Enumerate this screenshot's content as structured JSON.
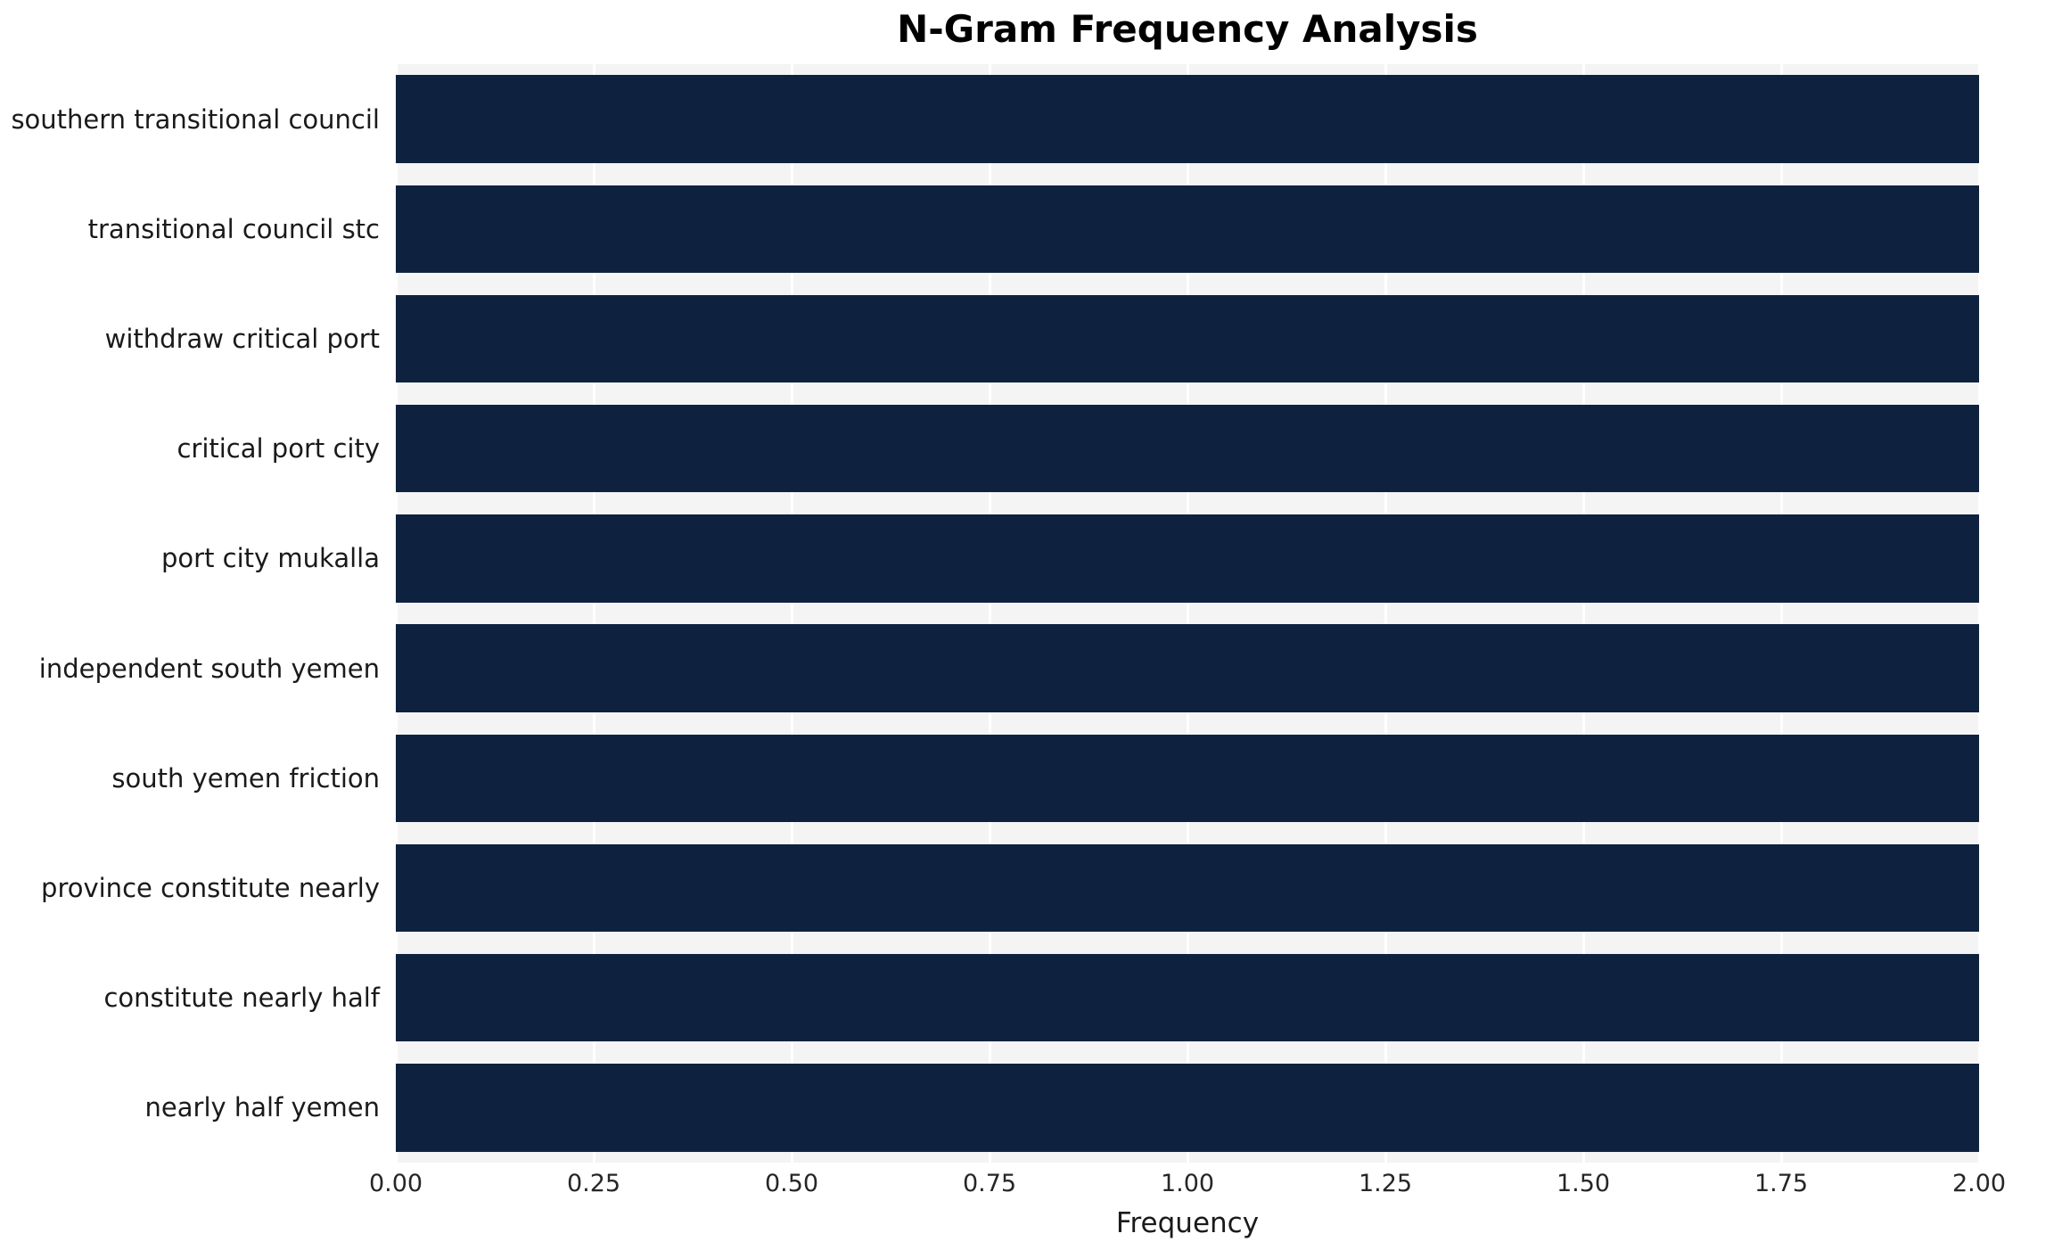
{
  "chart_data": {
    "type": "bar",
    "orientation": "horizontal",
    "title": "N-Gram Frequency Analysis",
    "xlabel": "Frequency",
    "ylabel": "",
    "categories": [
      "southern transitional council",
      "transitional council stc",
      "withdraw critical port",
      "critical port city",
      "port city mukalla",
      "independent south yemen",
      "south yemen friction",
      "province constitute nearly",
      "constitute nearly half",
      "nearly half yemen"
    ],
    "values": [
      2,
      2,
      2,
      2,
      2,
      2,
      2,
      2,
      2,
      2
    ],
    "xlim": [
      0,
      2.0
    ],
    "xticks": [
      0.0,
      0.25,
      0.5,
      0.75,
      1.0,
      1.25,
      1.5,
      1.75,
      2.0
    ],
    "xtick_labels": [
      "0.00",
      "0.25",
      "0.50",
      "0.75",
      "1.00",
      "1.25",
      "1.50",
      "1.75",
      "2.00"
    ],
    "bar_color": "#0e2240",
    "plot_bg": "#f4f4f5",
    "grid": true,
    "grid_color": "#ffffff",
    "bar_fraction": 0.8,
    "legend": null
  }
}
